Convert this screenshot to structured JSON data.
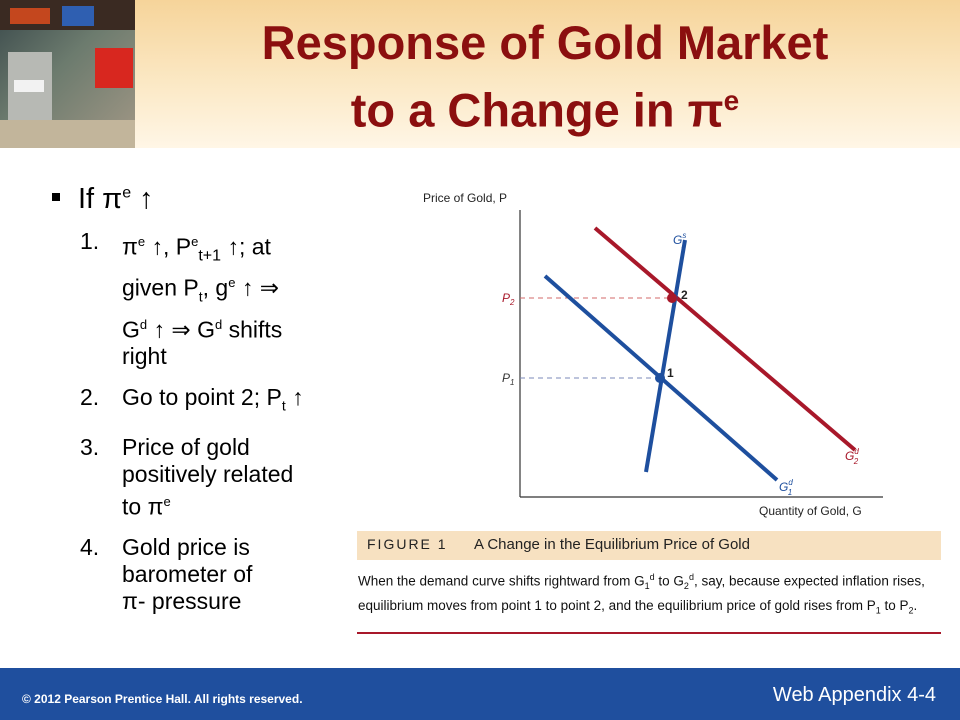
{
  "title": {
    "line1": "Response of Gold Market",
    "line2_text": "to a Change in ",
    "pi": "π",
    "sup": "e"
  },
  "bullet": {
    "lead": "If ",
    "pi": "π",
    "sup": "e",
    "arrow": "↑"
  },
  "items": {
    "n1": "1.",
    "n2": "2.",
    "n3": "3.",
    "n4": "4.",
    "i1": {
      "pi": "π",
      "sup_e": "e",
      "arrow": "↑",
      "comma": ", ",
      "P": "P",
      "sub_t1": "t+1",
      "semi_at": "; at",
      "given": "given  P",
      "sub_t": "t",
      "g": ", g",
      "implies": "⇒",
      "G": "G",
      "sup_d": "d",
      "shifts": " shifts",
      "right": "right"
    },
    "i2": {
      "text": "Go to point 2; P",
      "sub": "t",
      "arrow": "↑"
    },
    "i3": {
      "line1": "Price of gold",
      "line2": "positively related",
      "line3": "to ",
      "pi": "π",
      "sup": "e"
    },
    "i4": {
      "line1": "Gold price is",
      "line2": "barometer of",
      "pi": "π",
      "tail": "- pressure"
    }
  },
  "graph": {
    "ylabel": "Price of Gold, P",
    "xlabel": "Quantity of Gold, G",
    "p2": "P",
    "p2_sub": "2",
    "p1": "P",
    "p1_sub": "1",
    "pt2": "2",
    "pt1": "1",
    "supply": {
      "G": "G",
      "sub": "1",
      "sup": "s"
    },
    "demand2": {
      "G": "G",
      "sub": "2",
      "sup": "d"
    },
    "demand1": {
      "G": "G",
      "sub": "1",
      "sup": "d"
    },
    "colors": {
      "demand1": "#1e4f9e",
      "supply": "#1e4f9e",
      "demand2": "#a8182a",
      "dash": "#d36a6a"
    }
  },
  "figure": {
    "label": "FIGURE 1",
    "caption": "A Change in the Equilibrium Price of Gold",
    "body": {
      "a": "When the demand curve shifts rightward from G",
      "a_sub": "1",
      "a_sup": "d",
      "b": " to G",
      "b_sub": "2",
      "b_sup": "d",
      "c": ", say, because expected inflation rises, equilibrium moves from point 1 to point 2, and the equilibrium price of gold rises from P",
      "c_sub": "1",
      "d": " to P",
      "d_sub": "2",
      "e": "."
    }
  },
  "footer": {
    "copyright": "© 2012 Pearson Prentice Hall. All rights reserved.",
    "page": "Web Appendix 4-4"
  }
}
